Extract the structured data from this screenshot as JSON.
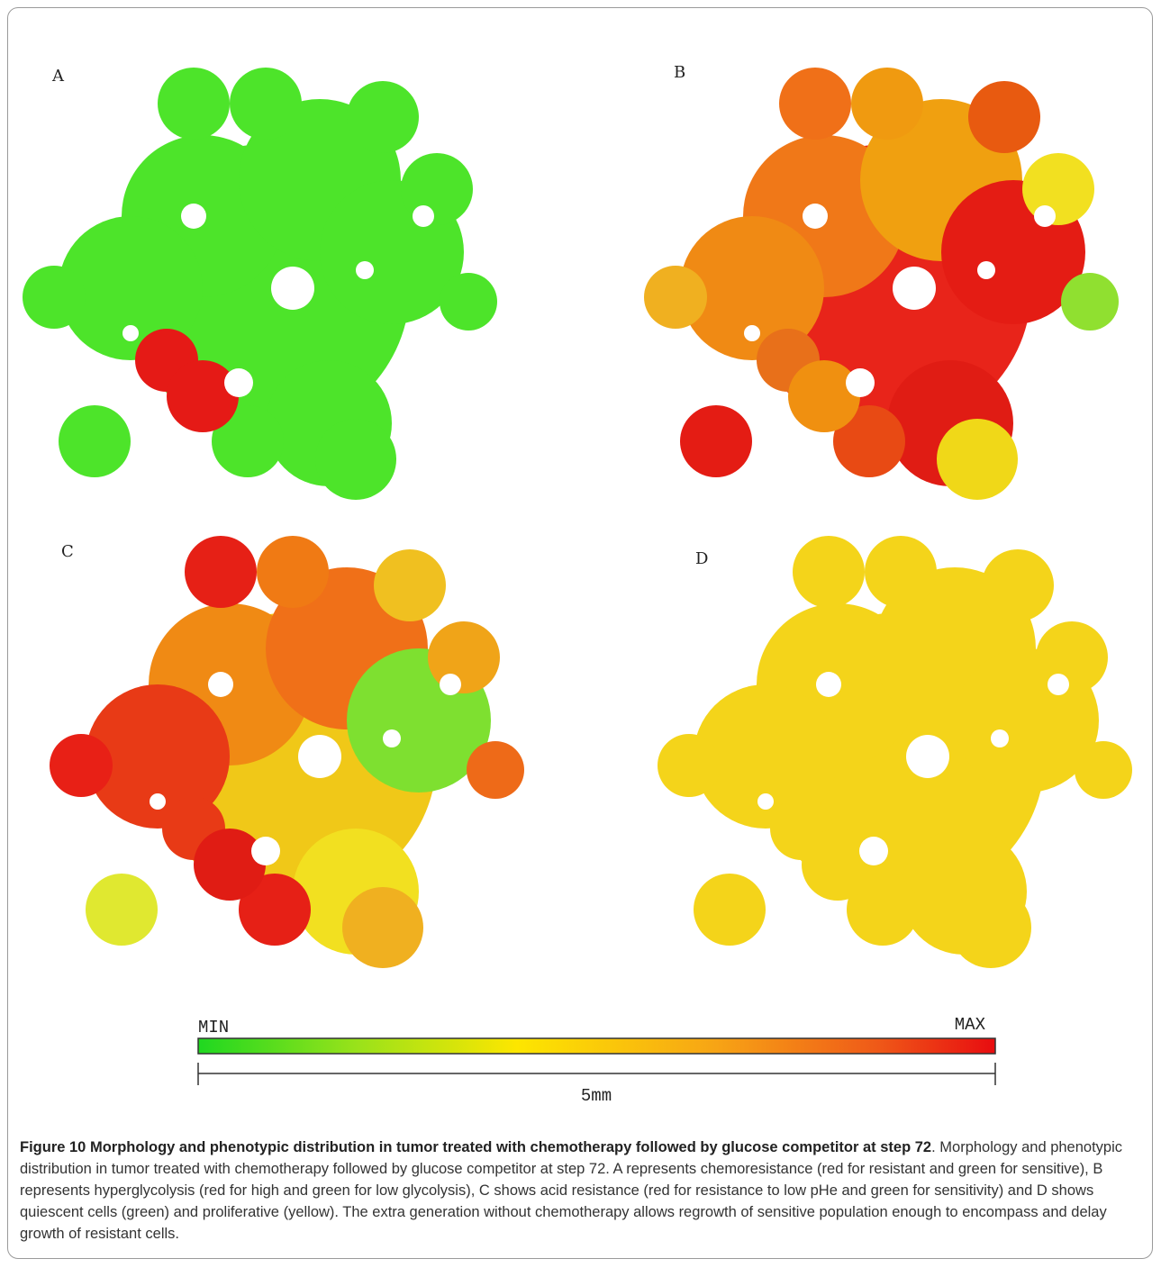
{
  "panels": [
    {
      "label": "A"
    },
    {
      "label": "B"
    },
    {
      "label": "C"
    },
    {
      "label": "D"
    }
  ],
  "scale": {
    "min_label": "MIN",
    "max_label": "MAX",
    "length_label": "5mm"
  },
  "caption": {
    "label": "Figure 10",
    "title": "Morphology and phenotypic distribution in tumor treated with chemotherapy followed by glucose competitor at step 72",
    "text": ". Morphology and phenotypic distribution in tumor treated with chemotherapy followed by glucose competitor at step 72. A represents chemoresistance (red for resistant and green for sensitive), B represents hyperglycolysis (red for high and green for low glycolysis), C shows acid resistance (red for resistance to low pHe and green for sensitivity) and D shows quiescent cells (green) and proliferative (yellow). The extra generation without chemotherapy allows regrowth of sensitive population enough to encompass and delay growth of resistant cells."
  }
}
